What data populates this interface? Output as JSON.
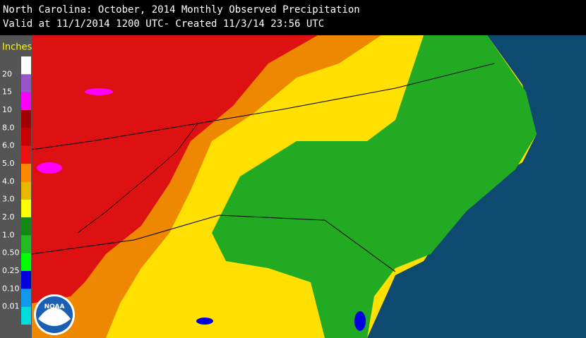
{
  "header": {
    "title": "North Carolina: October, 2014 Monthly Observed Precipitation",
    "subtitle": "Valid at 11/1/2014 1200 UTC- Created 11/3/14 23:56 UTC"
  },
  "legend": {
    "title": "Inches",
    "colors": [
      "#ffffff",
      "#9955cc",
      "#ff00ff",
      "#a00000",
      "#c80000",
      "#ee1111",
      "#ff8800",
      "#e8b800",
      "#ffff00",
      "#118811",
      "#22bb22",
      "#00ff00",
      "#0000dd",
      "#1199ee",
      "#00dddd"
    ],
    "labels": [
      "20",
      "15",
      "10",
      "8.0",
      "6.0",
      "5.0",
      "4.0",
      "3.0",
      "2.0",
      "1.0",
      "0.50",
      "0.25",
      "0.10",
      "0.01"
    ]
  },
  "logo": {
    "text": "NOAA"
  }
}
